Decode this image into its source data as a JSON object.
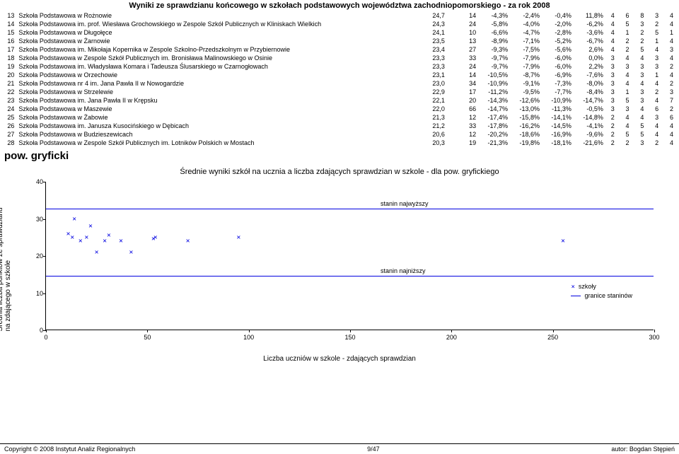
{
  "title": "Wyniki ze sprawdzianu końcowego w szkołach podstawowych województwa zachodniopomorskiego - za rok 2008",
  "rows": [
    {
      "n": "13",
      "name": "Szkoła Podstawowa w Rożnowie",
      "a": "24,7",
      "b": "14",
      "c": "-4,3%",
      "d": "-2,4%",
      "e": "-0,4%",
      "f": "11,8%",
      "s": [
        "4",
        "6",
        "8",
        "3",
        "4"
      ]
    },
    {
      "n": "14",
      "name": "Szkoła Podstawowa im. prof. Wiesława Grochowskiego w Zespole Szkół Publicznych w Kliniskach Wielkich",
      "a": "24,3",
      "b": "24",
      "c": "-5,8%",
      "d": "-4,0%",
      "e": "-2,0%",
      "f": "-6,2%",
      "s": [
        "4",
        "5",
        "3",
        "2",
        "4"
      ]
    },
    {
      "n": "15",
      "name": "Szkoła Podstawowa w Długołęce",
      "a": "24,1",
      "b": "10",
      "c": "-6,6%",
      "d": "-4,7%",
      "e": "-2,8%",
      "f": "-3,6%",
      "s": [
        "4",
        "1",
        "2",
        "5",
        "1"
      ]
    },
    {
      "n": "16",
      "name": "Szkoła Podstawowa w Żarnowie",
      "a": "23,5",
      "b": "13",
      "c": "-8,9%",
      "d": "-7,1%",
      "e": "-5,2%",
      "f": "-6,7%",
      "s": [
        "4",
        "2",
        "2",
        "1",
        "4"
      ]
    },
    {
      "n": "17",
      "name": "Szkoła Podstawowa im. Mikołaja Kopernika w Zespole Szkolno-Przedszkolnym w Przybiernowie",
      "a": "23,4",
      "b": "27",
      "c": "-9,3%",
      "d": "-7,5%",
      "e": "-5,6%",
      "f": "2,6%",
      "s": [
        "4",
        "2",
        "5",
        "4",
        "3"
      ]
    },
    {
      "n": "18",
      "name": "Szkoła Podstawowa w Zespole Szkół Publicznych im. Bronisława Malinowskiego w Osinie",
      "a": "23,3",
      "b": "33",
      "c": "-9,7%",
      "d": "-7,9%",
      "e": "-6,0%",
      "f": "0,0%",
      "s": [
        "3",
        "4",
        "4",
        "3",
        "4"
      ]
    },
    {
      "n": "19",
      "name": "Szkoła Podstawowa im. Władysława Komara i Tadeusza Ślusarskiego w Czarnogłowach",
      "a": "23,3",
      "b": "24",
      "c": "-9,7%",
      "d": "-7,9%",
      "e": "-6,0%",
      "f": "2,2%",
      "s": [
        "3",
        "3",
        "3",
        "3",
        "2"
      ]
    },
    {
      "n": "20",
      "name": "Szkoła Podstawowa w Orzechowie",
      "a": "23,1",
      "b": "14",
      "c": "-10,5%",
      "d": "-8,7%",
      "e": "-6,9%",
      "f": "-7,6%",
      "s": [
        "3",
        "4",
        "3",
        "1",
        "4"
      ]
    },
    {
      "n": "21",
      "name": "Szkoła Podstawowa nr 4 im. Jana Pawła II w Nowogardzie",
      "a": "23,0",
      "b": "34",
      "c": "-10,9%",
      "d": "-9,1%",
      "e": "-7,3%",
      "f": "-8,0%",
      "s": [
        "3",
        "4",
        "4",
        "4",
        "2"
      ]
    },
    {
      "n": "22",
      "name": "Szkoła Podstawowa w Strzelewie",
      "a": "22,9",
      "b": "17",
      "c": "-11,2%",
      "d": "-9,5%",
      "e": "-7,7%",
      "f": "-8,4%",
      "s": [
        "3",
        "1",
        "3",
        "2",
        "3"
      ]
    },
    {
      "n": "23",
      "name": "Szkoła Podstawowa im. Jana Pawła II w Krępsku",
      "a": "22,1",
      "b": "20",
      "c": "-14,3%",
      "d": "-12,6%",
      "e": "-10,9%",
      "f": "-14,7%",
      "s": [
        "3",
        "5",
        "3",
        "4",
        "7"
      ]
    },
    {
      "n": "24",
      "name": "Szkoła Podstawowa w Maszewie",
      "a": "22,0",
      "b": "66",
      "c": "-14,7%",
      "d": "-13,0%",
      "e": "-11,3%",
      "f": "-0,5%",
      "s": [
        "3",
        "3",
        "4",
        "6",
        "2"
      ]
    },
    {
      "n": "25",
      "name": "Szkoła Podstawowa w Żabowie",
      "a": "21,3",
      "b": "12",
      "c": "-17,4%",
      "d": "-15,8%",
      "e": "-14,1%",
      "f": "-14,8%",
      "s": [
        "2",
        "4",
        "4",
        "3",
        "6"
      ]
    },
    {
      "n": "26",
      "name": "Szkoła Podstawowa im. Janusza Kusocińskiego w Dębicach",
      "a": "21,2",
      "b": "33",
      "c": "-17,8%",
      "d": "-16,2%",
      "e": "-14,5%",
      "f": "-4,1%",
      "s": [
        "2",
        "4",
        "5",
        "4",
        "4"
      ]
    },
    {
      "n": "27",
      "name": "Szkoła Podstawowa w Budzieszewicach",
      "a": "20,6",
      "b": "12",
      "c": "-20,2%",
      "d": "-18,6%",
      "e": "-16,9%",
      "f": "-9,6%",
      "s": [
        "2",
        "5",
        "5",
        "4",
        "4"
      ]
    },
    {
      "n": "28",
      "name": "Szkoła Podstawowa w Zespole Szkół Publicznych im. Lotników Polskich w Mostach",
      "a": "20,3",
      "b": "19",
      "c": "-21,3%",
      "d": "-19,8%",
      "e": "-18,1%",
      "f": "-21,6%",
      "s": [
        "2",
        "2",
        "3",
        "2",
        "4"
      ]
    }
  ],
  "section_heading": "pow. gryficki",
  "chart": {
    "title": "Średnie wyniki szkół na ucznia a liczba zdających sprawdzian w szkole - dla pow. gryfickiego",
    "x_label": "Liczba uczniów w szkole - zdających sprawdzian",
    "y_label": "Średnia liczba punktów ze sprawdzianu\nna zdającego w szkole",
    "xlim": [
      0,
      300
    ],
    "ylim": [
      0,
      40
    ],
    "xticks": [
      0,
      50,
      100,
      150,
      200,
      250,
      300
    ],
    "yticks": [
      0,
      10,
      20,
      30,
      40
    ],
    "point_color": "#0000e0",
    "marker": "×",
    "points": [
      {
        "x": 11,
        "y": 26
      },
      {
        "x": 14,
        "y": 30
      },
      {
        "x": 13,
        "y": 25
      },
      {
        "x": 17,
        "y": 24
      },
      {
        "x": 20,
        "y": 25
      },
      {
        "x": 22,
        "y": 28
      },
      {
        "x": 25,
        "y": 21
      },
      {
        "x": 29,
        "y": 24
      },
      {
        "x": 31,
        "y": 25.5
      },
      {
        "x": 37,
        "y": 24
      },
      {
        "x": 42,
        "y": 21
      },
      {
        "x": 53,
        "y": 24.5
      },
      {
        "x": 54,
        "y": 25
      },
      {
        "x": 70,
        "y": 24
      },
      {
        "x": 95,
        "y": 25
      },
      {
        "x": 255,
        "y": 24
      }
    ],
    "stanin_high": {
      "y": 32.7,
      "label": "stanin najwyższy"
    },
    "stanin_low": {
      "y": 14.6,
      "label": "stanin najniższy"
    },
    "legend": {
      "schools": "szkoły",
      "lines": "granice staninów"
    }
  },
  "footer": {
    "left": "Copyright © 2008 Instytut Analiz Regionalnych",
    "center": "9/47",
    "right": "autor: Bogdan Stępień"
  }
}
